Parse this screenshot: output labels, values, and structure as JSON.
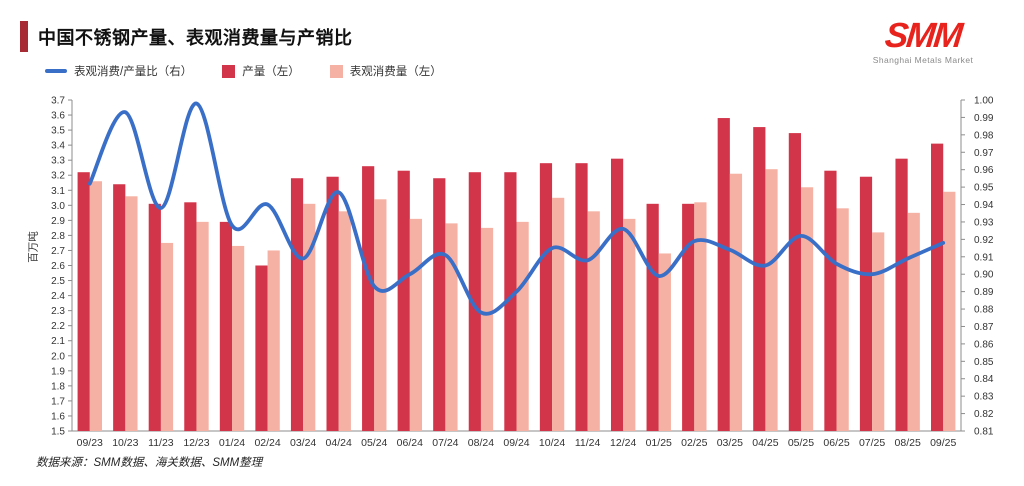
{
  "header": {
    "title": "中国不锈钢产量、表观消费量与产销比"
  },
  "logo": {
    "text": "SMM",
    "tagline": "Shanghai Metals Market",
    "color": "#e8231d"
  },
  "legend": {
    "ratio_label": "表观消费/产量比（右）",
    "production_label": "产量（左）",
    "consumption_label": "表观消费量（左）"
  },
  "footer": {
    "source": "数据来源：SMM数据、海关数据、SMM整理"
  },
  "chart_data": {
    "type": "bar+line",
    "title": "中国不锈钢产量、表观消费量与产销比",
    "ylabel_left": "百万吨",
    "left_axis": {
      "min": 1.5,
      "max": 3.7,
      "step": 0.1
    },
    "right_axis": {
      "min": 0.81,
      "max": 1.0,
      "step": 0.01
    },
    "grid": false,
    "legend_position": "top-left",
    "categories": [
      "09/23",
      "10/23",
      "11/23",
      "12/23",
      "01/24",
      "02/24",
      "03/24",
      "04/24",
      "05/24",
      "06/24",
      "07/24",
      "08/24",
      "09/24",
      "10/24",
      "11/24",
      "12/24",
      "01/25",
      "02/25",
      "03/25",
      "04/25",
      "05/25",
      "06/25",
      "07/25",
      "08/25",
      "09/25"
    ],
    "series": [
      {
        "name": "表观消费/产量比（右）",
        "type": "line",
        "axis": "right",
        "color": "#3a6fc8",
        "values": [
          0.952,
          0.993,
          0.938,
          0.998,
          0.928,
          0.94,
          0.909,
          0.947,
          0.893,
          0.9,
          0.911,
          0.878,
          0.89,
          0.915,
          0.908,
          0.926,
          0.899,
          0.919,
          0.914,
          0.905,
          0.922,
          0.906,
          0.9,
          0.909,
          0.918
        ]
      },
      {
        "name": "产量（左）",
        "type": "bar",
        "axis": "left",
        "color": "#d23449",
        "values": [
          3.22,
          3.14,
          3.01,
          3.02,
          2.89,
          2.6,
          3.18,
          3.19,
          3.26,
          3.23,
          3.18,
          3.22,
          3.22,
          3.28,
          3.28,
          3.31,
          3.01,
          3.01,
          3.58,
          3.52,
          3.48,
          3.23,
          3.19,
          3.31,
          3.41
        ]
      },
      {
        "name": "表观消费量（左）",
        "type": "bar",
        "axis": "left",
        "color": "#f5b1a3",
        "values": [
          3.16,
          3.06,
          2.75,
          2.89,
          2.73,
          2.7,
          3.01,
          2.96,
          3.04,
          2.91,
          2.88,
          2.85,
          2.89,
          3.05,
          2.96,
          2.91,
          2.68,
          3.02,
          3.21,
          3.24,
          3.12,
          2.98,
          2.82,
          2.95,
          3.09
        ]
      }
    ]
  }
}
